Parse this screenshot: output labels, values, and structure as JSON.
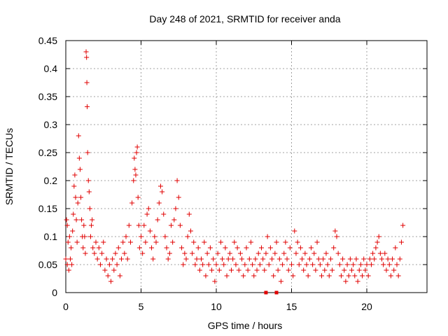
{
  "chart_data": {
    "type": "scatter",
    "title": "Day 248 of 2021, SRMTID for receiver anda",
    "xlabel": "GPS time / hours",
    "ylabel": "SRMTID / TECUs",
    "xlim": [
      0,
      24
    ],
    "ylim": [
      0,
      0.45
    ],
    "xticks": [
      0,
      5,
      10,
      15,
      20
    ],
    "yticks": [
      0,
      0.05,
      0.1,
      0.15,
      0.2,
      0.25,
      0.3,
      0.35,
      0.4,
      0.45
    ],
    "xtick_labels": [
      "0",
      "5",
      "10",
      "15",
      "20"
    ],
    "ytick_labels": [
      "0",
      "0.05",
      "0.1",
      "0.15",
      "0.2",
      "0.25",
      "0.3",
      "0.35",
      "0.4",
      "0.45"
    ],
    "grid": true,
    "marker": "+",
    "color": "#e00000",
    "series": [
      {
        "name": "SRMTID",
        "points": [
          [
            0.0,
            0.06
          ],
          [
            0.05,
            0.13
          ],
          [
            0.1,
            0.12
          ],
          [
            0.1,
            0.05
          ],
          [
            0.15,
            0.09
          ],
          [
            0.2,
            0.04
          ],
          [
            0.25,
            0.1
          ],
          [
            0.3,
            0.06
          ],
          [
            0.35,
            0.08
          ],
          [
            0.4,
            0.05
          ],
          [
            0.45,
            0.11
          ],
          [
            0.5,
            0.14
          ],
          [
            0.55,
            0.19
          ],
          [
            0.6,
            0.21
          ],
          [
            0.65,
            0.17
          ],
          [
            0.7,
            0.13
          ],
          [
            0.75,
            0.09
          ],
          [
            0.8,
            0.16
          ],
          [
            0.85,
            0.28
          ],
          [
            0.9,
            0.24
          ],
          [
            0.95,
            0.22
          ],
          [
            1.0,
            0.17
          ],
          [
            1.05,
            0.13
          ],
          [
            1.1,
            0.1
          ],
          [
            1.15,
            0.08
          ],
          [
            1.2,
            0.12
          ],
          [
            1.25,
            0.1
          ],
          [
            1.3,
            0.07
          ],
          [
            1.35,
            0.43
          ],
          [
            1.38,
            0.42
          ],
          [
            1.4,
            0.375
          ],
          [
            1.42,
            0.332
          ],
          [
            1.45,
            0.25
          ],
          [
            1.5,
            0.2
          ],
          [
            1.55,
            0.18
          ],
          [
            1.6,
            0.15
          ],
          [
            1.65,
            0.1
          ],
          [
            1.7,
            0.12
          ],
          [
            1.75,
            0.13
          ],
          [
            1.8,
            0.08
          ],
          [
            1.9,
            0.07
          ],
          [
            2.0,
            0.09
          ],
          [
            2.1,
            0.06
          ],
          [
            2.2,
            0.08
          ],
          [
            2.3,
            0.05
          ],
          [
            2.4,
            0.07
          ],
          [
            2.5,
            0.09
          ],
          [
            2.6,
            0.04
          ],
          [
            2.7,
            0.06
          ],
          [
            2.8,
            0.03
          ],
          [
            2.9,
            0.05
          ],
          [
            3.0,
            0.02
          ],
          [
            3.1,
            0.06
          ],
          [
            3.2,
            0.04
          ],
          [
            3.3,
            0.07
          ],
          [
            3.4,
            0.05
          ],
          [
            3.5,
            0.08
          ],
          [
            3.6,
            0.03
          ],
          [
            3.7,
            0.06
          ],
          [
            3.8,
            0.09
          ],
          [
            3.9,
            0.07
          ],
          [
            4.0,
            0.1
          ],
          [
            4.1,
            0.06
          ],
          [
            4.2,
            0.12
          ],
          [
            4.3,
            0.09
          ],
          [
            4.4,
            0.16
          ],
          [
            4.5,
            0.2
          ],
          [
            4.55,
            0.24
          ],
          [
            4.6,
            0.22
          ],
          [
            4.65,
            0.21
          ],
          [
            4.7,
            0.25
          ],
          [
            4.75,
            0.26
          ],
          [
            4.8,
            0.17
          ],
          [
            4.85,
            0.12
          ],
          [
            4.9,
            0.08
          ],
          [
            5.0,
            0.1
          ],
          [
            5.1,
            0.07
          ],
          [
            5.2,
            0.12
          ],
          [
            5.3,
            0.09
          ],
          [
            5.4,
            0.14
          ],
          [
            5.5,
            0.15
          ],
          [
            5.6,
            0.11
          ],
          [
            5.7,
            0.08
          ],
          [
            5.8,
            0.06
          ],
          [
            5.9,
            0.1
          ],
          [
            6.0,
            0.09
          ],
          [
            6.1,
            0.13
          ],
          [
            6.2,
            0.16
          ],
          [
            6.3,
            0.19
          ],
          [
            6.4,
            0.18
          ],
          [
            6.5,
            0.14
          ],
          [
            6.6,
            0.1
          ],
          [
            6.7,
            0.08
          ],
          [
            6.8,
            0.06
          ],
          [
            6.9,
            0.07
          ],
          [
            7.0,
            0.12
          ],
          [
            7.1,
            0.09
          ],
          [
            7.2,
            0.13
          ],
          [
            7.3,
            0.15
          ],
          [
            7.4,
            0.2
          ],
          [
            7.5,
            0.17
          ],
          [
            7.6,
            0.12
          ],
          [
            7.7,
            0.08
          ],
          [
            7.8,
            0.05
          ],
          [
            7.9,
            0.07
          ],
          [
            8.0,
            0.06
          ],
          [
            8.1,
            0.1
          ],
          [
            8.2,
            0.14
          ],
          [
            8.3,
            0.11
          ],
          [
            8.4,
            0.07
          ],
          [
            8.5,
            0.09
          ],
          [
            8.6,
            0.05
          ],
          [
            8.7,
            0.06
          ],
          [
            8.8,
            0.08
          ],
          [
            8.9,
            0.04
          ],
          [
            9.0,
            0.06
          ],
          [
            9.1,
            0.05
          ],
          [
            9.2,
            0.09
          ],
          [
            9.3,
            0.03
          ],
          [
            9.4,
            0.07
          ],
          [
            9.5,
            0.05
          ],
          [
            9.6,
            0.08
          ],
          [
            9.7,
            0.04
          ],
          [
            9.8,
            0.06
          ],
          [
            9.9,
            0.02
          ],
          [
            10.0,
            0.05
          ],
          [
            10.1,
            0.07
          ],
          [
            10.2,
            0.04
          ],
          [
            10.3,
            0.09
          ],
          [
            10.4,
            0.06
          ],
          [
            10.5,
            0.05
          ],
          [
            10.6,
            0.08
          ],
          [
            10.7,
            0.03
          ],
          [
            10.8,
            0.06
          ],
          [
            10.9,
            0.07
          ],
          [
            11.0,
            0.04
          ],
          [
            11.1,
            0.06
          ],
          [
            11.2,
            0.09
          ],
          [
            11.3,
            0.05
          ],
          [
            11.4,
            0.08
          ],
          [
            11.5,
            0.04
          ],
          [
            11.6,
            0.07
          ],
          [
            11.7,
            0.06
          ],
          [
            11.8,
            0.03
          ],
          [
            11.9,
            0.05
          ],
          [
            12.0,
            0.08
          ],
          [
            12.1,
            0.04
          ],
          [
            12.2,
            0.06
          ],
          [
            12.3,
            0.09
          ],
          [
            12.4,
            0.05
          ],
          [
            12.5,
            0.03
          ],
          [
            12.6,
            0.06
          ],
          [
            12.7,
            0.04
          ],
          [
            12.8,
            0.07
          ],
          [
            12.9,
            0.05
          ],
          [
            13.0,
            0.08
          ],
          [
            13.1,
            0.06
          ],
          [
            13.2,
            0.04
          ],
          [
            13.3,
            0.07
          ],
          [
            13.4,
            0.1
          ],
          [
            13.5,
            0.05
          ],
          [
            13.6,
            0.08
          ],
          [
            13.7,
            0.06
          ],
          [
            13.8,
            0.03
          ],
          [
            13.9,
            0.07
          ],
          [
            14.0,
            0.09
          ],
          [
            14.1,
            0.04
          ],
          [
            14.2,
            0.06
          ],
          [
            14.3,
            0.02
          ],
          [
            14.4,
            0.05
          ],
          [
            14.5,
            0.07
          ],
          [
            14.6,
            0.09
          ],
          [
            14.7,
            0.06
          ],
          [
            14.8,
            0.04
          ],
          [
            14.9,
            0.08
          ],
          [
            15.0,
            0.05
          ],
          [
            15.1,
            0.03
          ],
          [
            15.2,
            0.11
          ],
          [
            15.3,
            0.07
          ],
          [
            15.4,
            0.09
          ],
          [
            15.5,
            0.05
          ],
          [
            15.6,
            0.08
          ],
          [
            15.7,
            0.06
          ],
          [
            15.8,
            0.04
          ],
          [
            15.9,
            0.07
          ],
          [
            16.0,
            0.05
          ],
          [
            16.1,
            0.03
          ],
          [
            16.2,
            0.06
          ],
          [
            16.3,
            0.08
          ],
          [
            16.4,
            0.05
          ],
          [
            16.5,
            0.07
          ],
          [
            16.6,
            0.04
          ],
          [
            16.7,
            0.09
          ],
          [
            16.8,
            0.06
          ],
          [
            16.9,
            0.05
          ],
          [
            17.0,
            0.03
          ],
          [
            17.1,
            0.06
          ],
          [
            17.2,
            0.04
          ],
          [
            17.3,
            0.07
          ],
          [
            17.4,
            0.05
          ],
          [
            17.5,
            0.03
          ],
          [
            17.6,
            0.06
          ],
          [
            17.7,
            0.04
          ],
          [
            17.8,
            0.08
          ],
          [
            17.9,
            0.11
          ],
          [
            18.0,
            0.1
          ],
          [
            18.1,
            0.07
          ],
          [
            18.2,
            0.05
          ],
          [
            18.3,
            0.03
          ],
          [
            18.4,
            0.06
          ],
          [
            18.5,
            0.04
          ],
          [
            18.6,
            0.02
          ],
          [
            18.7,
            0.05
          ],
          [
            18.8,
            0.03
          ],
          [
            18.9,
            0.06
          ],
          [
            19.0,
            0.04
          ],
          [
            19.1,
            0.05
          ],
          [
            19.2,
            0.03
          ],
          [
            19.3,
            0.06
          ],
          [
            19.4,
            0.02
          ],
          [
            19.5,
            0.04
          ],
          [
            19.6,
            0.05
          ],
          [
            19.7,
            0.03
          ],
          [
            19.8,
            0.06
          ],
          [
            19.9,
            0.04
          ],
          [
            20.0,
            0.05
          ],
          [
            20.1,
            0.03
          ],
          [
            20.2,
            0.06
          ],
          [
            20.3,
            0.05
          ],
          [
            20.4,
            0.07
          ],
          [
            20.5,
            0.06
          ],
          [
            20.6,
            0.08
          ],
          [
            20.7,
            0.09
          ],
          [
            20.8,
            0.1
          ],
          [
            20.9,
            0.07
          ],
          [
            21.0,
            0.06
          ],
          [
            21.1,
            0.05
          ],
          [
            21.2,
            0.07
          ],
          [
            21.3,
            0.04
          ],
          [
            21.4,
            0.06
          ],
          [
            21.5,
            0.05
          ],
          [
            21.6,
            0.03
          ],
          [
            21.7,
            0.06
          ],
          [
            21.8,
            0.04
          ],
          [
            21.9,
            0.08
          ],
          [
            22.0,
            0.05
          ],
          [
            22.1,
            0.03
          ],
          [
            22.2,
            0.06
          ],
          [
            22.3,
            0.09
          ],
          [
            22.4,
            0.12
          ]
        ]
      }
    ],
    "baseline_markers": [
      13.3,
      14.0
    ]
  }
}
